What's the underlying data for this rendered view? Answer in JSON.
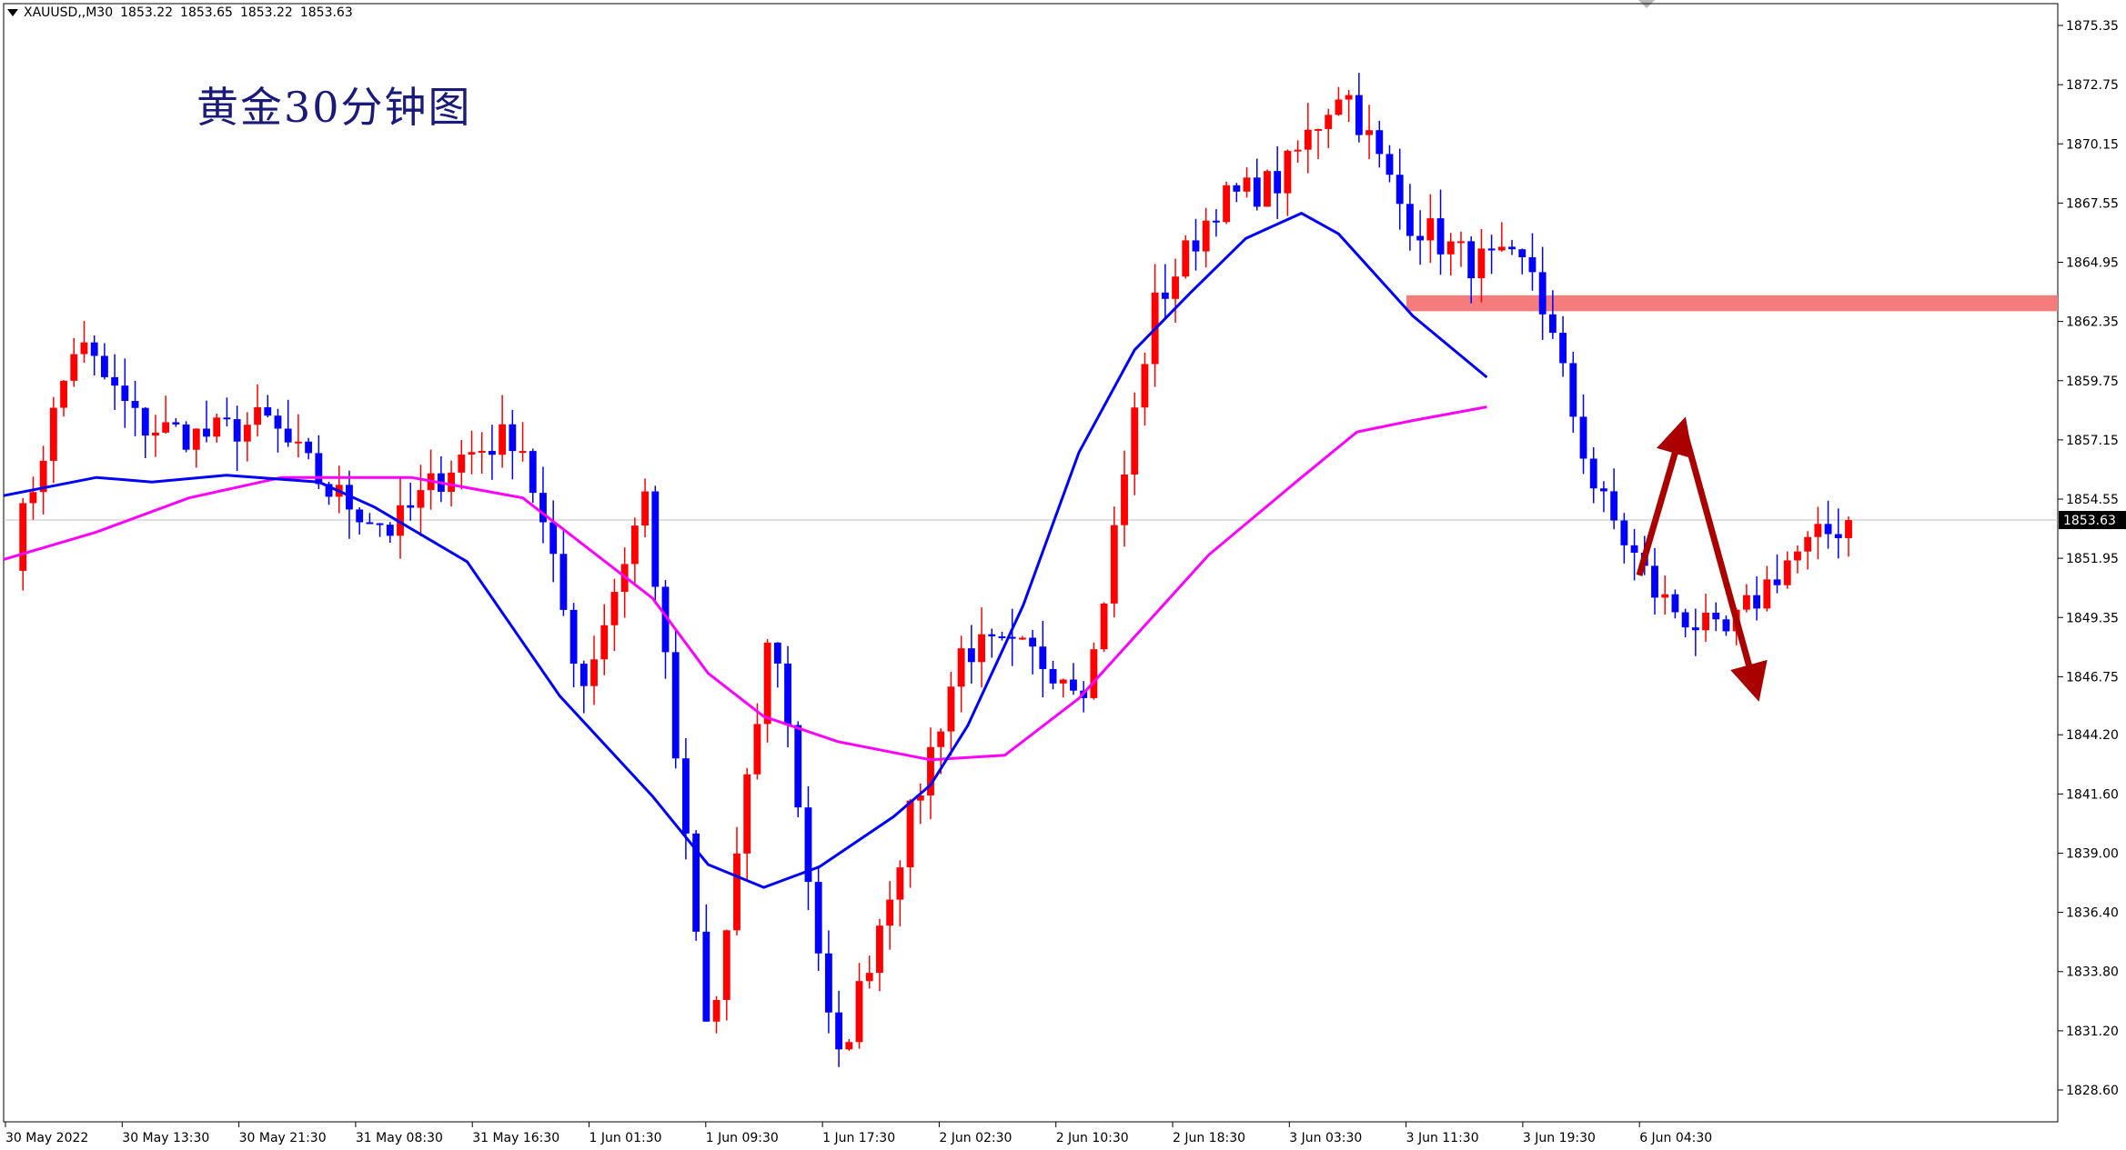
{
  "header": {
    "symbol": "XAUUSD,,M30",
    "open": "1853.22",
    "high": "1853.65",
    "low": "1853.22",
    "close": "1853.63"
  },
  "chart_title": "黄金30分钟图",
  "current_price": "1853.63",
  "colors": {
    "bull": "#ff0000",
    "bear": "#0000ff",
    "ma_fast": "#0000ff",
    "ma_slow": "#ff00ff",
    "resistance_zone": "#f47c7c",
    "arrow": "#aa0000",
    "axis": "#000000"
  },
  "chart_data": {
    "type": "candlestick",
    "ylim": [
      1826.6,
      1876.6
    ],
    "y_ticks": [
      "1875.35",
      "1872.75",
      "1870.15",
      "1867.55",
      "1864.95",
      "1862.35",
      "1859.75",
      "1857.15",
      "1854.55",
      "1851.95",
      "1849.35",
      "1846.75",
      "1844.20",
      "1841.60",
      "1839.00",
      "1836.40",
      "1833.80",
      "1831.20",
      "1828.60"
    ],
    "x_ticks": [
      "30 May 2022",
      "30 May 13:30",
      "30 May 21:30",
      "31 May 08:30",
      "31 May 16:30",
      "1 Jun 01:30",
      "1 Jun 09:30",
      "1 Jun 17:30",
      "2 Jun 02:30",
      "2 Jun 10:30",
      "2 Jun 18:30",
      "3 Jun 03:30",
      "3 Jun 11:30",
      "3 Jun 19:30",
      "6 Jun 04:30"
    ],
    "anchors_price": [
      1852.2,
      1861.5,
      1857.8,
      1857.3,
      1858.0,
      1854.9,
      1853.2,
      1856.3,
      1857.5,
      1846.3,
      1854.8,
      1830.3,
      1849.4,
      1829.3,
      1838.9,
      1848.0,
      1847.8,
      1846.5,
      1862.8,
      1867.5,
      1868.5,
      1872.8,
      1867.0,
      1865.0,
      1864.7,
      1854.9,
      1850.2,
      1848.3,
      1851.8,
      1853.63
    ],
    "ma_fast": [
      [
        0,
        1854.7
      ],
      [
        0.05,
        1855.5
      ],
      [
        0.08,
        1855.3
      ],
      [
        0.12,
        1855.6
      ],
      [
        0.17,
        1855.3
      ],
      [
        0.2,
        1854.2
      ],
      [
        0.25,
        1851.8
      ],
      [
        0.3,
        1845.9
      ],
      [
        0.35,
        1841.5
      ],
      [
        0.38,
        1838.5
      ],
      [
        0.41,
        1837.5
      ],
      [
        0.44,
        1838.4
      ],
      [
        0.48,
        1840.6
      ],
      [
        0.5,
        1842.0
      ],
      [
        0.52,
        1844.6
      ],
      [
        0.55,
        1849.9
      ],
      [
        0.58,
        1856.6
      ],
      [
        0.61,
        1861.1
      ],
      [
        0.64,
        1863.6
      ],
      [
        0.67,
        1866.0
      ],
      [
        0.7,
        1867.1
      ],
      [
        0.72,
        1866.2
      ],
      [
        0.76,
        1862.6
      ],
      [
        0.8,
        1859.9
      ]
    ],
    "ma_slow": [
      [
        0,
        1851.9
      ],
      [
        0.05,
        1853.1
      ],
      [
        0.1,
        1854.6
      ],
      [
        0.15,
        1855.5
      ],
      [
        0.22,
        1855.5
      ],
      [
        0.28,
        1854.6
      ],
      [
        0.35,
        1850.2
      ],
      [
        0.38,
        1846.9
      ],
      [
        0.41,
        1845.0
      ],
      [
        0.45,
        1843.9
      ],
      [
        0.5,
        1843.1
      ],
      [
        0.54,
        1843.3
      ],
      [
        0.58,
        1845.8
      ],
      [
        0.61,
        1848.5
      ],
      [
        0.65,
        1852.1
      ],
      [
        0.7,
        1855.5
      ],
      [
        0.73,
        1857.5
      ],
      [
        0.76,
        1858.0
      ],
      [
        0.8,
        1858.6
      ]
    ],
    "resistance_zone": [
      1862.8,
      1863.5
    ],
    "annotation_arrows": [
      {
        "from": 1851.2,
        "to": 1858.0
      },
      {
        "from": 1858.0,
        "to": 1845.9
      }
    ]
  }
}
